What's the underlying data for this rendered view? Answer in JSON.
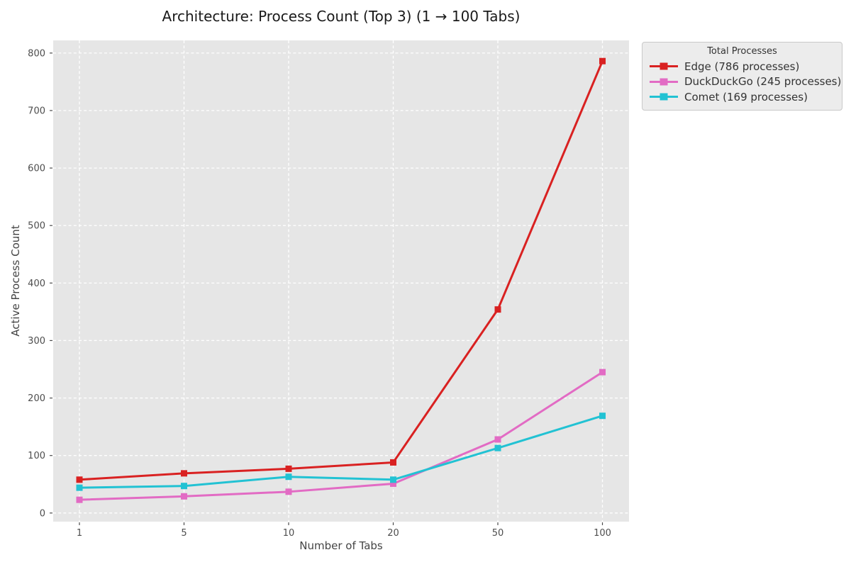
{
  "colors": {
    "figure_bg": "#ffffff",
    "axes_bg": "#e6e6e6",
    "grid": "#ffffff",
    "tick": "#4d4d4d",
    "title_text": "#1a1a1a",
    "legend_bg": "#ececec",
    "legend_border": "#c9c9c9",
    "edge_red": "#d92121",
    "duckduckgo_pink": "#e26bc4",
    "comet_cyan": "#22c2d3"
  },
  "chart_data": {
    "type": "line",
    "title": "Architecture: Process Count (Top 3) (1 → 100 Tabs)",
    "xlabel": "Number of Tabs",
    "ylabel": "Active Process Count",
    "categories": [
      "1",
      "5",
      "10",
      "20",
      "50",
      "100"
    ],
    "y_ticks": [
      0,
      100,
      200,
      300,
      400,
      500,
      600,
      700,
      800
    ],
    "ylim": [
      -15,
      822
    ],
    "grid": true,
    "grid_style": "dashed-white",
    "marker": "square",
    "legend": {
      "title": "Total Processes",
      "position": "outside-upper-right"
    },
    "series": [
      {
        "id": "edge",
        "name": "Edge (786 processes)",
        "color": "#d92121",
        "values": [
          58,
          69,
          77,
          88,
          354,
          786
        ]
      },
      {
        "id": "duckduckgo",
        "name": "DuckDuckGo (245 processes)",
        "color": "#e26bc4",
        "values": [
          23,
          29,
          37,
          51,
          128,
          245
        ]
      },
      {
        "id": "comet",
        "name": "Comet (169 processes)",
        "color": "#22c2d3",
        "values": [
          44,
          47,
          63,
          58,
          113,
          169
        ]
      }
    ]
  }
}
